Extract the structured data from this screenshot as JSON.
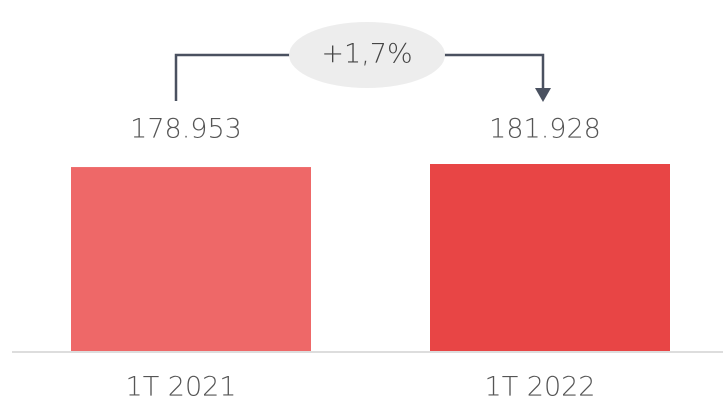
{
  "chart_data": {
    "type": "bar",
    "categories": [
      "1T 2021",
      "1T 2022"
    ],
    "values": [
      178953,
      181928
    ],
    "value_labels": [
      "178.953",
      "181.928"
    ],
    "colors": [
      "#ee6868",
      "#e84545"
    ],
    "annotation": "+1,7%"
  }
}
